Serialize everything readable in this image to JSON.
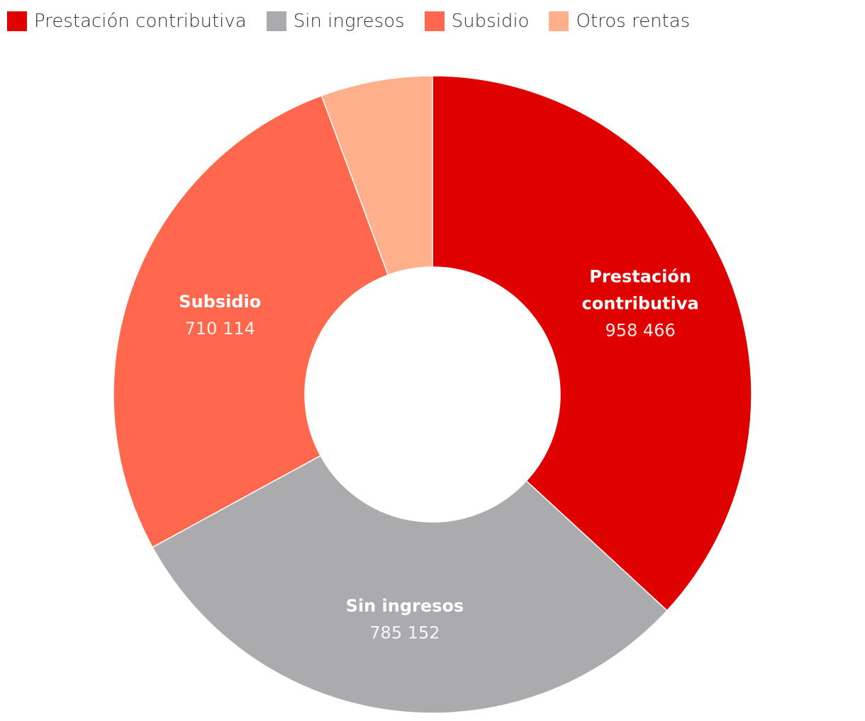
{
  "chart_data": {
    "type": "pie",
    "variant": "donut",
    "slices": [
      {
        "label": "Prestación contributiva",
        "label_lines": [
          "Prestación",
          "contributiva"
        ],
        "value": 958466,
        "value_text": "958 466",
        "color": "#e00000",
        "show_label": true
      },
      {
        "label": "Sin ingresos",
        "label_lines": [
          "Sin ingresos"
        ],
        "value": 785152,
        "value_text": "785 152",
        "color": "#abaaae",
        "show_label": true
      },
      {
        "label": "Subsidio",
        "label_lines": [
          "Subsidio"
        ],
        "value": 710114,
        "value_text": "710 114",
        "color": "#ff684c",
        "show_label": true
      },
      {
        "label": "Otros rentas",
        "label_lines": [
          "Otros rentas"
        ],
        "value": 147000,
        "value_text": "",
        "color": "#ffaf8c",
        "show_label": false
      }
    ],
    "legend": {
      "position": "top-left",
      "entries": [
        "Prestación contributiva",
        "Sin ingresos",
        "Subsidio",
        "Otros rentas"
      ]
    }
  }
}
